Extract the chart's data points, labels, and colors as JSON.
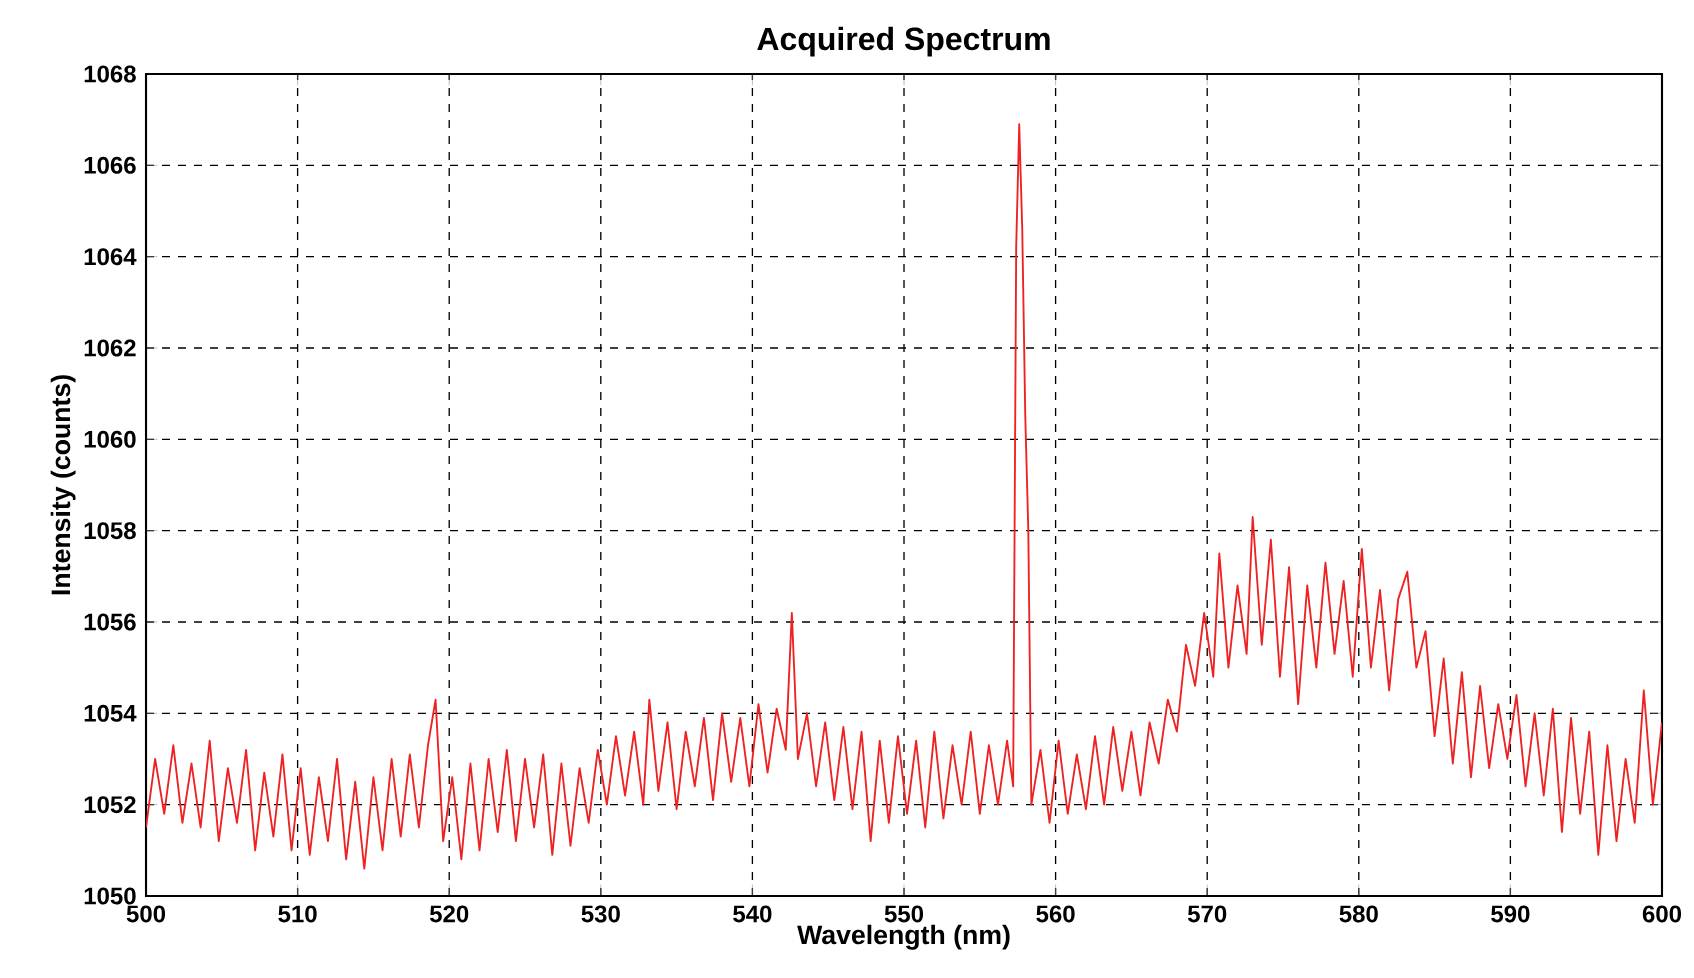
{
  "chart_data": {
    "type": "line",
    "title": "Acquired Spectrum",
    "xlabel": "Wavelength (nm)",
    "ylabel": "Intensity (counts)",
    "xlim": [
      500,
      600
    ],
    "ylim": [
      1050,
      1068
    ],
    "xticks": [
      500,
      510,
      520,
      530,
      540,
      550,
      560,
      570,
      580,
      590,
      600
    ],
    "yticks": [
      1050,
      1052,
      1054,
      1056,
      1058,
      1060,
      1062,
      1064,
      1066,
      1068
    ],
    "grid": true,
    "series": [
      {
        "color": "#ee2222",
        "x": [
          500,
          500.6,
          501.2,
          501.8,
          502.4,
          503,
          503.6,
          504.2,
          504.8,
          505.4,
          506,
          506.6,
          507.2,
          507.8,
          508.4,
          509,
          509.6,
          510.2,
          510.8,
          511.4,
          512,
          512.6,
          513.2,
          513.8,
          514.4,
          515,
          515.6,
          516.2,
          516.8,
          517.4,
          518,
          518.6,
          519.1,
          519.6,
          520.2,
          520.8,
          521.4,
          522,
          522.6,
          523.2,
          523.8,
          524.4,
          525,
          525.6,
          526.2,
          526.8,
          527.4,
          528,
          528.6,
          529.2,
          529.8,
          530.4,
          531,
          531.6,
          532.2,
          532.8,
          533.2,
          533.8,
          534.4,
          535,
          535.6,
          536.2,
          536.8,
          537.4,
          538,
          538.6,
          539.2,
          539.8,
          540.4,
          541,
          541.6,
          542.2,
          542.6,
          543,
          543.6,
          544.2,
          544.8,
          545.4,
          546,
          546.6,
          547.2,
          547.8,
          548.4,
          549,
          549.6,
          550.2,
          550.8,
          551.4,
          552,
          552.6,
          553.2,
          553.8,
          554.4,
          555,
          555.6,
          556.2,
          556.8,
          557.2,
          557.4,
          557.6,
          557.8,
          558.0,
          558.2,
          558.4,
          559,
          559.6,
          560.2,
          560.8,
          561.4,
          562,
          562.6,
          563.2,
          563.8,
          564.4,
          565,
          565.6,
          566.2,
          566.8,
          567.4,
          568,
          568.6,
          569.2,
          569.8,
          570.4,
          570.8,
          571.4,
          572,
          572.6,
          573,
          573.6,
          574.2,
          574.8,
          575.4,
          576,
          576.6,
          577.2,
          577.8,
          578.4,
          579,
          579.6,
          580.2,
          580.8,
          581.4,
          582,
          582.6,
          583.2,
          583.8,
          584.4,
          585,
          585.6,
          586.2,
          586.8,
          587.4,
          588,
          588.6,
          589.2,
          589.8,
          590.4,
          591,
          591.6,
          592.2,
          592.8,
          593.4,
          594,
          594.6,
          595.2,
          595.8,
          596.4,
          597,
          597.6,
          598.2,
          598.8,
          599.4,
          600
        ],
        "values": [
          1051.5,
          1053.0,
          1051.8,
          1053.3,
          1051.6,
          1052.9,
          1051.5,
          1053.4,
          1051.2,
          1052.8,
          1051.6,
          1053.2,
          1051.0,
          1052.7,
          1051.3,
          1053.1,
          1051.0,
          1052.8,
          1050.9,
          1052.6,
          1051.2,
          1053.0,
          1050.8,
          1052.5,
          1050.6,
          1052.6,
          1051.0,
          1053.0,
          1051.3,
          1053.1,
          1051.5,
          1053.3,
          1054.3,
          1051.2,
          1052.6,
          1050.8,
          1052.9,
          1051.0,
          1053.0,
          1051.4,
          1053.2,
          1051.2,
          1053.0,
          1051.5,
          1053.1,
          1050.9,
          1052.9,
          1051.1,
          1052.8,
          1051.6,
          1053.2,
          1052.0,
          1053.5,
          1052.2,
          1053.6,
          1052.0,
          1054.3,
          1052.3,
          1053.8,
          1051.9,
          1053.6,
          1052.4,
          1053.9,
          1052.1,
          1054.0,
          1052.5,
          1053.9,
          1052.4,
          1054.2,
          1052.7,
          1054.1,
          1053.2,
          1056.2,
          1053.0,
          1054.0,
          1052.4,
          1053.8,
          1052.1,
          1053.7,
          1051.9,
          1053.6,
          1051.2,
          1053.4,
          1051.6,
          1053.5,
          1051.8,
          1053.4,
          1051.5,
          1053.6,
          1051.7,
          1053.3,
          1052.0,
          1053.6,
          1051.8,
          1053.3,
          1052.0,
          1053.4,
          1052.4,
          1064.2,
          1066.9,
          1064.6,
          1060.5,
          1058.0,
          1052.0,
          1053.2,
          1051.6,
          1053.4,
          1051.8,
          1053.1,
          1051.9,
          1053.5,
          1052.0,
          1053.7,
          1052.3,
          1053.6,
          1052.2,
          1053.8,
          1052.9,
          1054.3,
          1053.6,
          1055.5,
          1054.6,
          1056.2,
          1054.8,
          1057.5,
          1055.0,
          1056.8,
          1055.3,
          1058.3,
          1055.5,
          1057.8,
          1054.8,
          1057.2,
          1054.2,
          1056.8,
          1055.0,
          1057.3,
          1055.3,
          1056.9,
          1054.8,
          1057.6,
          1055.0,
          1056.7,
          1054.5,
          1056.5,
          1057.1,
          1055.0,
          1055.8,
          1053.5,
          1055.2,
          1052.9,
          1054.9,
          1052.6,
          1054.6,
          1052.8,
          1054.2,
          1053.0,
          1054.4,
          1052.4,
          1054.0,
          1052.2,
          1054.1,
          1051.4,
          1053.9,
          1051.8,
          1053.6,
          1050.9,
          1053.3,
          1051.2,
          1053.0,
          1051.6,
          1054.5,
          1052.0,
          1053.8
        ]
      }
    ]
  }
}
